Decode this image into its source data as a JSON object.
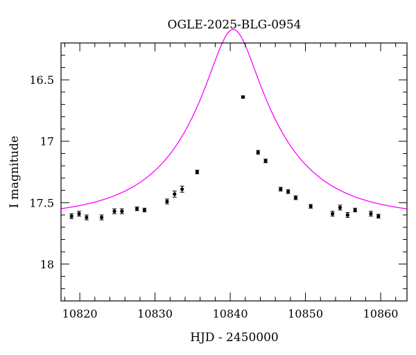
{
  "chart_data": {
    "type": "scatter",
    "title": "OGLE-2025-BLG-0954",
    "xlabel": "HJD - 2450000",
    "ylabel": "I magnitude",
    "xlim": [
      10817.5,
      10863.5
    ],
    "ylim": [
      18.3,
      16.2
    ],
    "y_inverted": true,
    "xticks": [
      10820,
      10830,
      10840,
      10850,
      10860
    ],
    "xtick_labels": [
      "10820",
      "10830",
      "10840",
      "10850",
      "10860"
    ],
    "yticks": [
      16.5,
      17,
      17.5,
      18
    ],
    "ytick_labels": [
      "16.5",
      "17",
      "17.5",
      "18"
    ],
    "grid": false,
    "legend": "none",
    "series": [
      {
        "kind": "points_with_errorbars",
        "color": "#000000",
        "points": [
          {
            "x": 10818.9,
            "y": 17.61,
            "err": 0.02
          },
          {
            "x": 10819.9,
            "y": 17.59,
            "err": 0.02
          },
          {
            "x": 10820.9,
            "y": 17.62,
            "err": 0.02
          },
          {
            "x": 10822.9,
            "y": 17.62,
            "err": 0.02
          },
          {
            "x": 10824.6,
            "y": 17.57,
            "err": 0.02
          },
          {
            "x": 10825.6,
            "y": 17.57,
            "err": 0.02
          },
          {
            "x": 10827.6,
            "y": 17.55,
            "err": 0.015
          },
          {
            "x": 10828.6,
            "y": 17.56,
            "err": 0.015
          },
          {
            "x": 10831.6,
            "y": 17.49,
            "err": 0.02
          },
          {
            "x": 10832.6,
            "y": 17.43,
            "err": 0.025
          },
          {
            "x": 10833.6,
            "y": 17.39,
            "err": 0.025
          },
          {
            "x": 10835.6,
            "y": 17.25,
            "err": 0.015
          },
          {
            "x": 10841.7,
            "y": 16.64,
            "err": 0.01
          },
          {
            "x": 10843.7,
            "y": 17.09,
            "err": 0.015
          },
          {
            "x": 10844.7,
            "y": 17.16,
            "err": 0.015
          },
          {
            "x": 10846.7,
            "y": 17.39,
            "err": 0.015
          },
          {
            "x": 10847.7,
            "y": 17.41,
            "err": 0.015
          },
          {
            "x": 10848.7,
            "y": 17.46,
            "err": 0.015
          },
          {
            "x": 10850.7,
            "y": 17.53,
            "err": 0.015
          },
          {
            "x": 10853.6,
            "y": 17.59,
            "err": 0.02
          },
          {
            "x": 10854.6,
            "y": 17.54,
            "err": 0.02
          },
          {
            "x": 10855.6,
            "y": 17.6,
            "err": 0.02
          },
          {
            "x": 10856.6,
            "y": 17.56,
            "err": 0.015
          },
          {
            "x": 10858.7,
            "y": 17.59,
            "err": 0.02
          },
          {
            "x": 10859.7,
            "y": 17.61,
            "err": 0.015
          }
        ]
      },
      {
        "kind": "model_curve",
        "model": "pspl",
        "color": "#ff00ff",
        "t0": 10840.4,
        "u0": 0.25,
        "tE": 12,
        "baseline_mag": 17.62
      }
    ]
  }
}
